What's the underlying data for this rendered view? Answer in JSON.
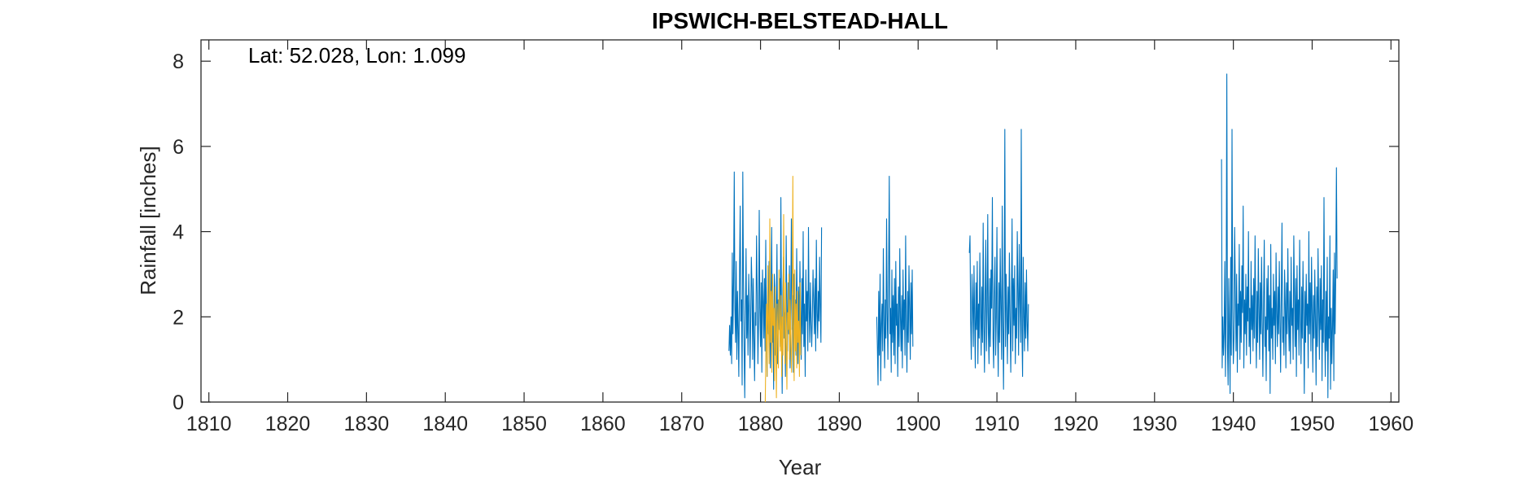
{
  "chart_data": {
    "type": "line",
    "title": "IPSWICH-BELSTEAD-HALL",
    "annotation": "Lat: 52.028, Lon: 1.099",
    "xlabel": "Year",
    "ylabel": "Rainfall [inches]",
    "xlim": [
      1809,
      1961
    ],
    "ylim": [
      0,
      8.5
    ],
    "xticks": [
      1810,
      1820,
      1830,
      1840,
      1850,
      1860,
      1870,
      1880,
      1890,
      1900,
      1910,
      1920,
      1930,
      1940,
      1950,
      1960
    ],
    "yticks": [
      0,
      2,
      4,
      6,
      8
    ],
    "grid": false,
    "box": true,
    "series": [
      {
        "color": "#0072BD",
        "segments": [
          {
            "x_start": 1876.0,
            "x_step": 0.0833333,
            "values": [
              1.2,
              1.8,
              1.1,
              2.0,
              0.9,
              3.5,
              1.6,
              2.8,
              5.4,
              2.2,
              1.4,
              3.3,
              1.0,
              2.6,
              1.7,
              0.6,
              3.1,
              4.6,
              1.9,
              2.4,
              0.4,
              5.4,
              2.9,
              1.3,
              0.1,
              2.0,
              3.6,
              1.5,
              2.5,
              1.1,
              3.0,
              2.2,
              0.8,
              1.9,
              3.4,
              2.7,
              1.0,
              2.9,
              1.5,
              0.5,
              2.1,
              1.8,
              3.9,
              2.6,
              0.9,
              1.9,
              4.5,
              2.2,
              1.3,
              2.8,
              0.7,
              3.1,
              2.4,
              1.5,
              2.9,
              1.2,
              3.8,
              2.0,
              0.6,
              2.7,
              1.6,
              3.3,
              1.9,
              0.8,
              2.5,
              4.1,
              1.4,
              2.2,
              0.3,
              3.0,
              2.6,
              1.1,
              2.0,
              3.7,
              0.9,
              2.4,
              1.7,
              2.9,
              1.3,
              4.8,
              1.9,
              0.2,
              2.6,
              3.4,
              1.5,
              2.1,
              0.6,
              3.9,
              2.3,
              1.2,
              2.8,
              1.6,
              3.2,
              0.8,
              2.2,
              4.3,
              1.7,
              2.5,
              0.7,
              3.0,
              1.8,
              2.4,
              1.1,
              3.6,
              2.0,
              0.9,
              2.7,
              1.5,
              3.3,
              2.1,
              1.0,
              2.9,
              1.6,
              4.0,
              1.3,
              2.3,
              0.6,
              3.1,
              1.9,
              2.6,
              1.2,
              4.1,
              2.2,
              1.4,
              2.8,
              1.9,
              1.3,
              2.0,
              3.1,
              2.4,
              1.6,
              2.9,
              1.2,
              3.8,
              2.1,
              1.5,
              2.6,
              1.9,
              3.4,
              2.2,
              1.4,
              4.1
            ]
          },
          {
            "x_start": 1894.75,
            "x_step": 0.0833333,
            "values": [
              2.0,
              1.3,
              0.4,
              2.6,
              1.1,
              3.0,
              0.5,
              1.8,
              2.3,
              1.2,
              3.6,
              1.9,
              0.8,
              2.4,
              1.5,
              4.3,
              2.1,
              1.0,
              2.8,
              5.3,
              1.6,
              2.2,
              0.7,
              3.1,
              1.4,
              2.5,
              1.1,
              2.9,
              0.9,
              3.3,
              1.8,
              2.3,
              0.6,
              2.7,
              1.3,
              3.6,
              2.0,
              1.2,
              2.5,
              0.8,
              3.1,
              1.7,
              2.4,
              1.1,
              3.9,
              1.9,
              0.7,
              2.6,
              1.4,
              3.2,
              2.2,
              1.0,
              2.8,
              1.6,
              3.1,
              1.3
            ]
          },
          {
            "x_start": 1906.5,
            "x_step": 0.0833333,
            "values": [
              3.5,
              3.9,
              1.9,
              1.0,
              3.0,
              2.4,
              1.3,
              3.2,
              2.0,
              0.8,
              2.8,
              1.7,
              3.3,
              0.9,
              2.3,
              1.5,
              3.5,
              2.2,
              1.1,
              2.7,
              1.4,
              4.2,
              1.8,
              0.7,
              2.5,
              3.8,
              1.2,
              2.1,
              4.4,
              1.6,
              0.9,
              2.9,
              1.3,
              3.1,
              2.2,
              4.8,
              1.5,
              0.8,
              2.6,
              3.4,
              1.1,
              2.0,
              4.1,
              1.7,
              0.6,
              2.8,
              1.4,
              3.6,
              2.3,
              1.0,
              4.6,
              1.9,
              0.3,
              2.5,
              6.4,
              1.3,
              3.0,
              2.1,
              0.9,
              2.7,
              1.6,
              3.5,
              2.0,
              0.7,
              2.4,
              4.3,
              1.2,
              2.9,
              1.8,
              3.2,
              0.9,
              2.2,
              1.5,
              4.0,
              2.6,
              1.1,
              3.7,
              2.3,
              1.4,
              6.4,
              1.7,
              0.6,
              3.4,
              2.1,
              1.2,
              2.8,
              1.5,
              3.1,
              1.9,
              1.2,
              2.3
            ]
          },
          {
            "x_start": 1938.5,
            "x_step": 0.0833333,
            "values": [
              5.7,
              0.8,
              2.0,
              1.1,
              1.6,
              3.3,
              0.6,
              2.4,
              7.7,
              1.3,
              0.4,
              2.9,
              1.7,
              0.2,
              3.4,
              1.1,
              6.4,
              2.2,
              0.9,
              1.5,
              4.1,
              2.6,
              1.2,
              3.0,
              0.7,
              2.3,
              1.8,
              3.7,
              1.0,
              2.6,
              1.4,
              3.2,
              2.1,
              4.6,
              0.8,
              2.4,
              1.6,
              3.0,
              1.1,
              2.7,
              1.9,
              4.0,
              1.3,
              2.2,
              0.9,
              3.3,
              1.7,
              2.5,
              1.2,
              2.9,
              1.5,
              3.9,
              2.0,
              0.8,
              2.6,
              1.4,
              3.6,
              2.2,
              1.0,
              2.8,
              1.6,
              3.4,
              1.9,
              0.6,
              2.4,
              3.8,
              1.3,
              2.0,
              0.5,
              2.9,
              1.7,
              3.2,
              1.2,
              2.5,
              0.2,
              3.7,
              1.5,
              2.2,
              1.0,
              3.0,
              1.8,
              2.6,
              0.9,
              3.5,
              2.1,
              1.3,
              2.7,
              1.6,
              3.3,
              1.9,
              0.7,
              2.4,
              4.2,
              1.4,
              2.0,
              1.1,
              3.1,
              2.3,
              0.8,
              2.8,
              1.6,
              3.6,
              2.0,
              1.2,
              2.6,
              0.9,
              3.4,
              1.8,
              2.2,
              1.0,
              3.9,
              2.5,
              1.3,
              2.9,
              0.6,
              3.2,
              1.7,
              2.4,
              1.1,
              3.8,
              2.1,
              0.9,
              2.7,
              1.5,
              3.3,
              2.0,
              0.2,
              2.6,
              1.4,
              3.0,
              1.8,
              2.3,
              0.8,
              4.0,
              1.6,
              2.8,
              1.2,
              3.4,
              2.1,
              0.7,
              2.5,
              1.5,
              3.1,
              1.9,
              0.4,
              2.7,
              1.3,
              3.6,
              2.2,
              1.0,
              2.9,
              1.7,
              3.2,
              0.5,
              2.4,
              1.4,
              4.8,
              1.9,
              0.6,
              2.6,
              1.2,
              3.4,
              0.1,
              2.0,
              1.5,
              3.9,
              0.3,
              2.2,
              0.9,
              1.8,
              3.1,
              0.5,
              3.5,
              1.6,
              3.1,
              5.5,
              2.9
            ]
          }
        ]
      },
      {
        "color": "#EDB120",
        "segments": [
          {
            "x_start": 1880.6,
            "x_step": 0.0833333,
            "values": [
              0.0,
              1.3,
              2.3,
              0.6,
              3.2,
              1.9,
              0.9,
              4.3,
              1.4,
              2.6,
              0.7,
              3.0,
              1.8,
              2.2,
              0.5,
              2.7,
              1.4,
              0.1,
              2.3,
              1.7,
              0.8,
              3.1,
              1.9,
              1.2,
              2.5,
              0.6,
              2.0,
              1.1,
              4.4,
              2.2,
              0.9,
              2.8,
              1.5,
              0.3,
              2.1,
              1.7,
              3.0,
              1.0,
              2.4,
              1.3,
              0.7,
              2.0,
              5.3,
              1.6,
              0.5,
              3.1,
              1.2,
              2.3,
              0.8,
              2.6,
              1.4,
              1.9,
              0.6,
              2.8,
              1.1
            ]
          }
        ]
      }
    ]
  }
}
